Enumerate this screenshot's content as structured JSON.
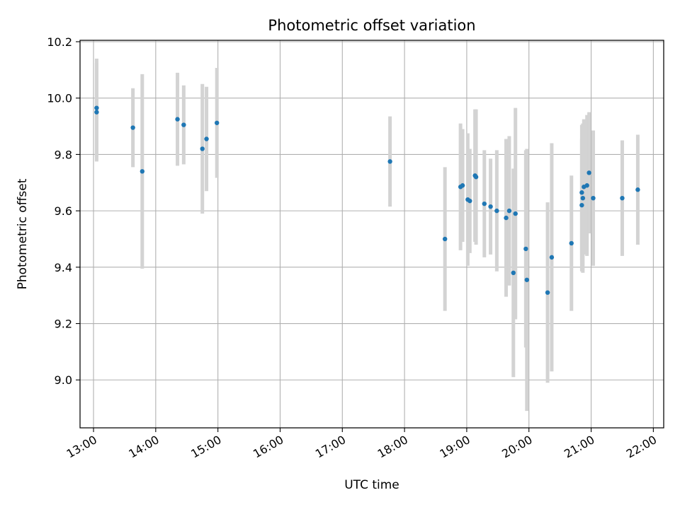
{
  "chart_data": {
    "type": "scatter",
    "title": "Photometric offset variation",
    "xlabel": "UTC time",
    "ylabel": "Photometric offset",
    "x_range": [
      "12:47",
      "22:10"
    ],
    "ylim": [
      8.83,
      10.205
    ],
    "x_ticks": [
      "13:00",
      "14:00",
      "15:00",
      "16:00",
      "17:00",
      "18:00",
      "19:00",
      "20:00",
      "21:00",
      "22:00"
    ],
    "y_ticks": [
      "9.0",
      "9.2",
      "9.4",
      "9.6",
      "9.8",
      "10.0",
      "10.2"
    ],
    "grid": true,
    "marker_color": "#1f77b4",
    "errorbar_color": "#d3d3d3",
    "series": [
      {
        "x": [
          "13:03",
          "13:03",
          "13:38",
          "13:47",
          "14:21",
          "14:27",
          "14:45",
          "14:49",
          "14:59",
          "17:46",
          "18:39",
          "18:54",
          "18:56",
          "19:01",
          "19:03",
          "19:08",
          "19:09",
          "19:17",
          "19:23",
          "19:29",
          "19:38",
          "19:41",
          "19:45",
          "19:47",
          "19:57",
          "19:58",
          "20:18",
          "20:22",
          "20:41",
          "20:51",
          "20:51",
          "20:52",
          "20:53",
          "20:56",
          "20:58",
          "21:02",
          "21:30",
          "21:45"
        ],
        "y": [
          9.965,
          9.95,
          9.895,
          9.74,
          9.925,
          9.905,
          9.82,
          9.855,
          9.912,
          9.775,
          9.5,
          9.685,
          9.69,
          9.64,
          9.635,
          9.725,
          9.72,
          9.625,
          9.615,
          9.6,
          9.575,
          9.6,
          9.38,
          9.59,
          9.465,
          9.355,
          9.31,
          9.435,
          9.485,
          9.62,
          9.665,
          9.645,
          9.685,
          9.69,
          9.735,
          9.645,
          9.645,
          9.675
        ],
        "error": [
          0.175,
          0.175,
          0.14,
          0.345,
          0.165,
          0.14,
          0.23,
          0.185,
          0.195,
          0.16,
          0.255,
          0.225,
          0.2,
          0.235,
          0.185,
          0.235,
          0.24,
          0.19,
          0.17,
          0.215,
          0.28,
          0.265,
          0.37,
          0.375,
          0.35,
          0.465,
          0.32,
          0.405,
          0.24,
          0.235,
          0.24,
          0.265,
          0.24,
          0.25,
          0.215,
          0.24,
          0.205,
          0.195
        ]
      }
    ]
  }
}
